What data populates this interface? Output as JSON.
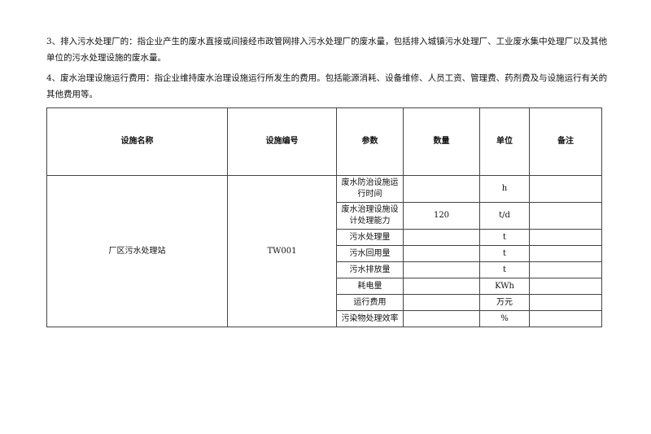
{
  "paragraphs": [
    "3、排入污水处理厂的：指企业产生的废水直接或间接经市政管网排入污水处理厂的废水量，包括排入城镇污水处理厂、工业废水集中处理厂以及其他单位的污水处理设施的废水量。",
    "4、废水治理设施运行费用：指企业维持废水治理设施运行所发生的费用。包括能源消耗、设备维修、人员工资、管理费、药剂费及与设施运行有关的其他费用等。"
  ],
  "table": {
    "headers": [
      "设施名称",
      "设施编号",
      "参数",
      "数量",
      "单位",
      "备注"
    ],
    "facility_name": "厂区污水处理站",
    "facility_id": "TW001",
    "rows": [
      {
        "param": "废水防治设施运行时间",
        "qty": "",
        "unit": "h",
        "note": ""
      },
      {
        "param": "废水治理设施设计处理能力",
        "qty": "120",
        "unit": "t/d",
        "note": ""
      },
      {
        "param": "污水处理量",
        "qty": "",
        "unit": "t",
        "note": ""
      },
      {
        "param": "污水回用量",
        "qty": "",
        "unit": "t",
        "note": ""
      },
      {
        "param": "污水排放量",
        "qty": "",
        "unit": "t",
        "note": ""
      },
      {
        "param": "耗电量",
        "qty": "",
        "unit": "KWh",
        "note": ""
      },
      {
        "param": "运行费用",
        "qty": "",
        "unit": "万元",
        "note": ""
      },
      {
        "param": "污染物处理效率",
        "qty": "",
        "unit": "%",
        "note": ""
      }
    ]
  }
}
